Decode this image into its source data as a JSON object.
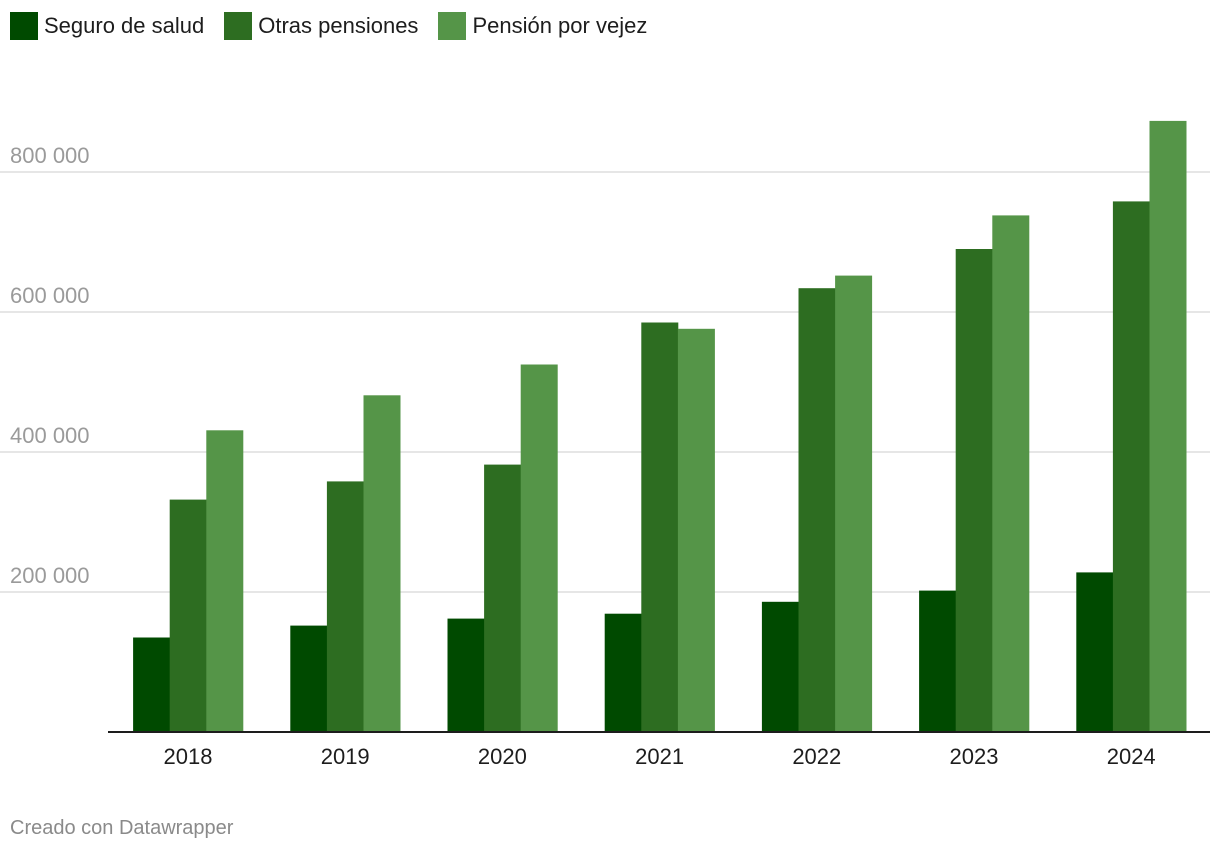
{
  "legend": [
    {
      "label": "Seguro de salud",
      "color": "#004a00"
    },
    {
      "label": "Otras pensiones",
      "color": "#2d6d21"
    },
    {
      "label": "Pensión por vejez",
      "color": "#559548"
    }
  ],
  "footer": {
    "credit": "Creado con Datawrapper"
  },
  "chart_data": {
    "type": "bar",
    "title": "",
    "xlabel": "",
    "ylabel": "",
    "categories": [
      "2018",
      "2019",
      "2020",
      "2021",
      "2022",
      "2023",
      "2024"
    ],
    "series": [
      {
        "name": "Seguro de salud",
        "color": "#004a00",
        "values": [
          135000,
          152000,
          162000,
          169000,
          186000,
          202000,
          228000
        ]
      },
      {
        "name": "Otras pensiones",
        "color": "#2d6d21",
        "values": [
          332000,
          358000,
          382000,
          585000,
          634000,
          690000,
          758000
        ]
      },
      {
        "name": "Pensión por vejez",
        "color": "#559548",
        "values": [
          431000,
          481000,
          525000,
          576000,
          652000,
          738000,
          873000
        ]
      }
    ],
    "ylim": [
      0,
      890000
    ],
    "yticks": [
      {
        "value": 200000,
        "label": "200 000"
      },
      {
        "value": 400000,
        "label": "400 000"
      },
      {
        "value": 600000,
        "label": "600 000"
      },
      {
        "value": 800000,
        "label": "800 000"
      }
    ],
    "grid": true,
    "legend_position": "top-left"
  }
}
